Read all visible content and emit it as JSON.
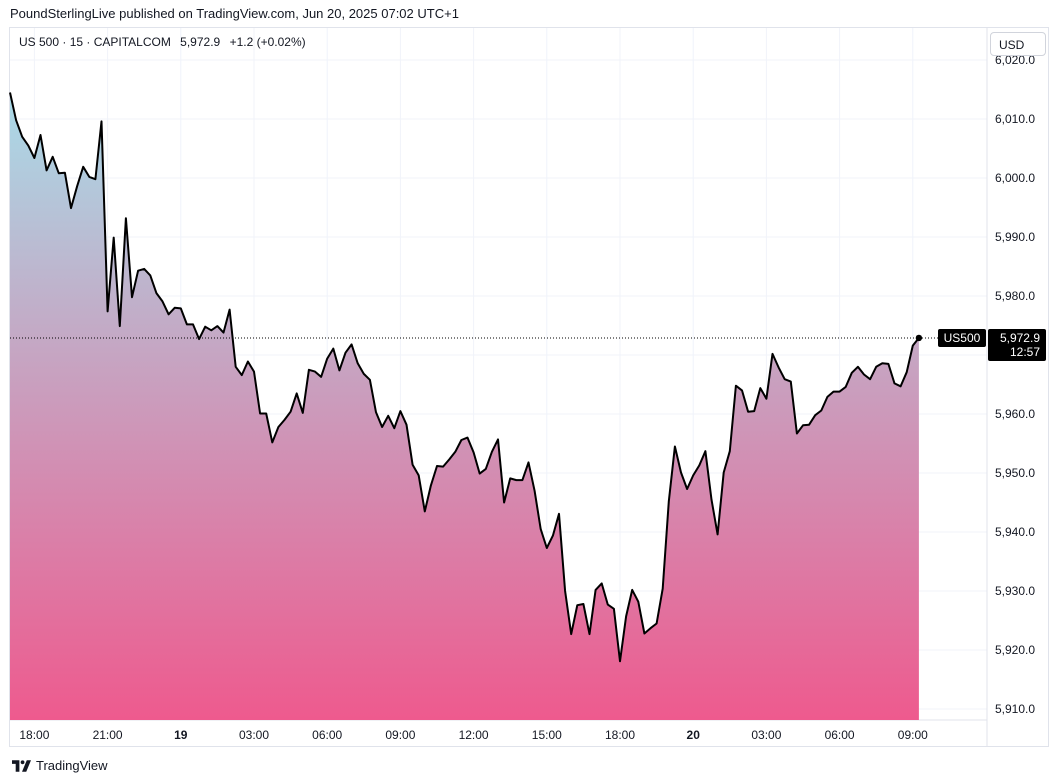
{
  "header": {
    "published_text": "PoundSterlingLive published on TradingView.com, Jun 20, 2025 07:02 UTC+1"
  },
  "legend": {
    "symbol": "US 500 · 15 · CAPITALCOM",
    "last": "5,972.9",
    "change": "+1.2 (+0.02%)"
  },
  "currency_button": "USD",
  "price_tag": {
    "symbol": "US500",
    "price": "5,972.9",
    "countdown": "12:57"
  },
  "footer": {
    "brand": "TradingView"
  },
  "colors": {
    "line": "#000000",
    "area_top": "#a9dbe8",
    "area_bottom": "#ee5a8e",
    "grid": "#f0f3fa",
    "tag_bg": "#000000"
  },
  "chart_data": {
    "type": "area",
    "ylim": [
      5908,
      6024
    ],
    "y_ticks": [
      6020,
      6010,
      6000,
      5990,
      5980,
      5970,
      5960,
      5950,
      5940,
      5930,
      5920,
      5910
    ],
    "y_tick_labels": [
      "6,020.0",
      "6,010.0",
      "6,000.0",
      "5,990.0",
      "5,980.0",
      "5,970.0",
      "5,960.0",
      "5,950.0",
      "5,940.0",
      "5,930.0",
      "5,920.0",
      "5,910.0"
    ],
    "x_ticks": [
      {
        "label": "18:00",
        "bar": 4,
        "bold": false
      },
      {
        "label": "21:00",
        "bar": 16,
        "bold": false
      },
      {
        "label": "19",
        "bar": 28,
        "bold": true
      },
      {
        "label": "03:00",
        "bar": 40,
        "bold": false
      },
      {
        "label": "06:00",
        "bar": 52,
        "bold": false
      },
      {
        "label": "09:00",
        "bar": 64,
        "bold": false
      },
      {
        "label": "12:00",
        "bar": 76,
        "bold": false
      },
      {
        "label": "15:00",
        "bar": 88,
        "bold": false
      },
      {
        "label": "18:00",
        "bar": 100,
        "bold": false
      },
      {
        "label": "20",
        "bar": 112,
        "bold": true
      },
      {
        "label": "03:00",
        "bar": 124,
        "bold": false
      },
      {
        "label": "06:00",
        "bar": 136,
        "bold": false
      },
      {
        "label": "09:00",
        "bar": 148,
        "bold": false
      }
    ],
    "bar_count_visible": 158,
    "last_value": 5972.9,
    "values": [
      6014.5,
      6009.8,
      6007.0,
      6005.5,
      6003.4,
      6007.3,
      6001.3,
      6003.6,
      6000.8,
      6000.9,
      5994.9,
      5998.6,
      6001.9,
      6000.2,
      5999.8,
      6009.6,
      5977.4,
      5989.9,
      5974.9,
      5993.2,
      5979.8,
      5984.3,
      5984.6,
      5983.5,
      5980.5,
      5979.1,
      5976.9,
      5978.0,
      5977.9,
      5975.2,
      5975.2,
      5972.7,
      5974.8,
      5974.2,
      5974.9,
      5973.8,
      5977.7,
      5968.0,
      5966.6,
      5968.9,
      5967.2,
      5960.1,
      5960.1,
      5955.2,
      5957.8,
      5959.0,
      5960.4,
      5963.5,
      5960.2,
      5967.5,
      5967.2,
      5966.3,
      5969.4,
      5971.1,
      5967.4,
      5970.4,
      5971.8,
      5968.6,
      5966.8,
      5965.8,
      5960.3,
      5957.8,
      5959.7,
      5957.6,
      5960.5,
      5958.2,
      5951.4,
      5949.6,
      5943.5,
      5947.9,
      5951.2,
      5951.1,
      5952.3,
      5953.6,
      5955.6,
      5956.0,
      5953.5,
      5949.9,
      5950.7,
      5953.6,
      5955.7,
      5945.0,
      5949.1,
      5948.8,
      5948.8,
      5951.8,
      5947.0,
      5940.5,
      5937.3,
      5939.4,
      5943.1,
      5930.0,
      5922.7,
      5927.6,
      5927.8,
      5922.7,
      5930.2,
      5931.3,
      5927.7,
      5927.0,
      5918.1,
      5925.7,
      5930.2,
      5928.2,
      5922.8,
      5923.7,
      5924.5,
      5930.4,
      5945.2,
      5954.5,
      5950.1,
      5947.3,
      5949.6,
      5951.3,
      5953.7,
      5945.5,
      5939.6,
      5950.1,
      5953.7,
      5964.8,
      5964.0,
      5960.4,
      5960.5,
      5964.4,
      5962.6,
      5970.2,
      5967.9,
      5965.9,
      5965.5,
      5956.7,
      5958.1,
      5958.2,
      5959.8,
      5960.6,
      5962.9,
      5963.8,
      5963.8,
      5964.6,
      5967.0,
      5968.0,
      5966.7,
      5965.9,
      5968.0,
      5968.6,
      5968.5,
      5965.2,
      5964.7,
      5967.1,
      5971.6,
      5972.9
    ]
  }
}
